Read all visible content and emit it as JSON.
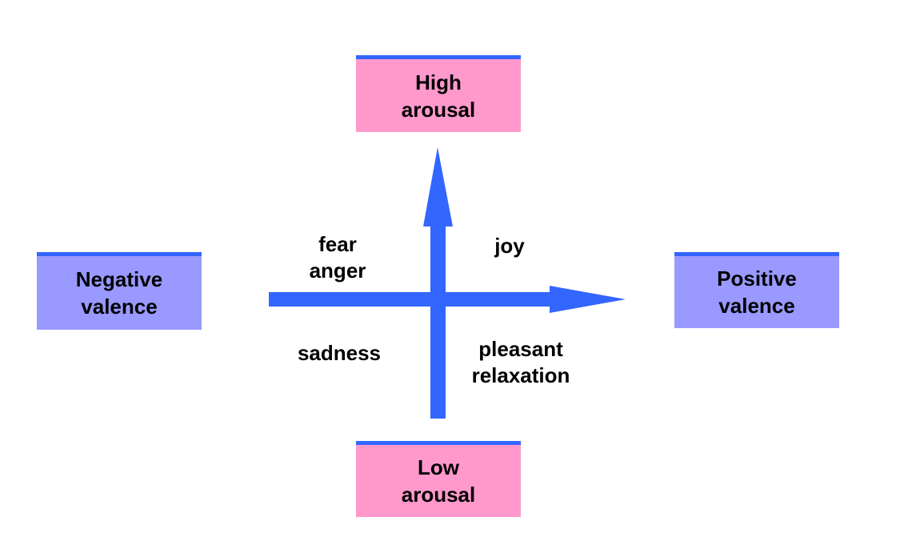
{
  "boxes": {
    "high_arousal": {
      "line1": "High",
      "line2": "arousal"
    },
    "low_arousal": {
      "line1": "Low",
      "line2": "arousal"
    },
    "negative_valence": {
      "line1": "Negative",
      "line2": "valence"
    },
    "positive_valence": {
      "line1": "Positive",
      "line2": "valence"
    }
  },
  "quadrants": {
    "top_left": {
      "line1": "fear",
      "line2": "anger"
    },
    "top_right": {
      "line1": "joy"
    },
    "bottom_left": {
      "line1": "sadness"
    },
    "bottom_right": {
      "line1": "pleasant",
      "line2": "relaxation"
    }
  },
  "colors": {
    "arrow": "#3366ff",
    "arousal_box": "#ff99cc",
    "valence_box": "#9999ff",
    "box_top_border": "#3366ff",
    "text": "#000000"
  }
}
